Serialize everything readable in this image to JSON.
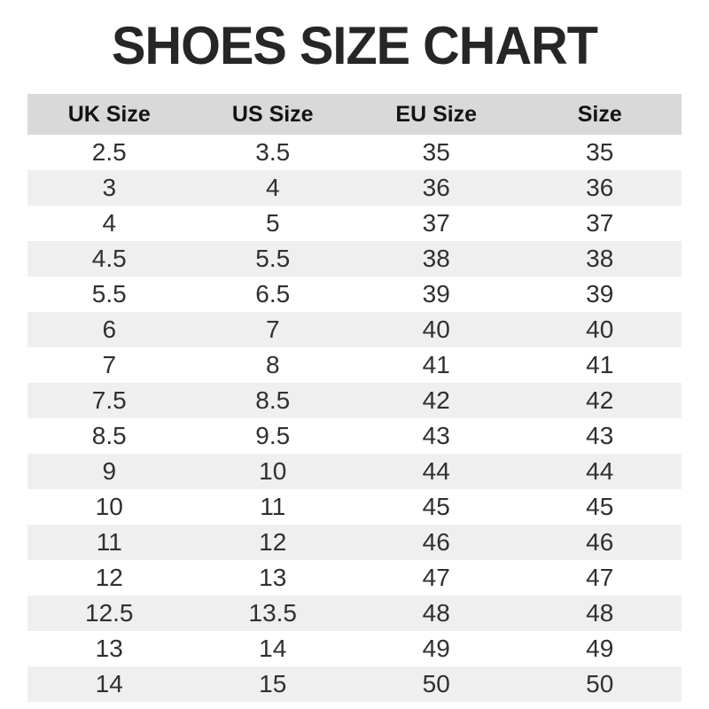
{
  "title": "SHOES SIZE CHART",
  "colors": {
    "header_bg": "#d9d9d9",
    "row_bg": "#ffffff",
    "row_alt_bg": "#efefef",
    "title_color": "#262626",
    "header_text": "#141414",
    "cell_text": "#303030"
  },
  "chart_data": {
    "type": "table",
    "title": "SHOES SIZE CHART",
    "columns": [
      "UK Size",
      "US Size",
      "EU Size",
      "Size"
    ],
    "rows": [
      [
        "2.5",
        "3.5",
        "35",
        "35"
      ],
      [
        "3",
        "4",
        "36",
        "36"
      ],
      [
        "4",
        "5",
        "37",
        "37"
      ],
      [
        "4.5",
        "5.5",
        "38",
        "38"
      ],
      [
        "5.5",
        "6.5",
        "39",
        "39"
      ],
      [
        "6",
        "7",
        "40",
        "40"
      ],
      [
        "7",
        "8",
        "41",
        "41"
      ],
      [
        "7.5",
        "8.5",
        "42",
        "42"
      ],
      [
        "8.5",
        "9.5",
        "43",
        "43"
      ],
      [
        "9",
        "10",
        "44",
        "44"
      ],
      [
        "10",
        "11",
        "45",
        "45"
      ],
      [
        "11",
        "12",
        "46",
        "46"
      ],
      [
        "12",
        "13",
        "47",
        "47"
      ],
      [
        "12.5",
        "13.5",
        "48",
        "48"
      ],
      [
        "13",
        "14",
        "49",
        "49"
      ],
      [
        "14",
        "15",
        "50",
        "50"
      ]
    ],
    "layout": {
      "stripe_pattern": "first data row white, alternating light gray",
      "alignment": "center",
      "grid": "off"
    }
  }
}
